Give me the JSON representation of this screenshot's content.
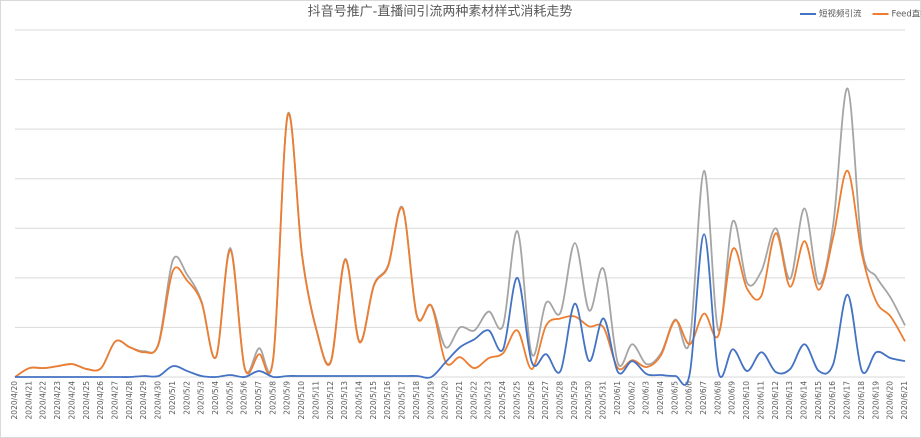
{
  "chart_data": {
    "type": "line",
    "title": "抖音号推广-直播间引流两种素材样式消耗走势",
    "categories": [
      "2020/4/20",
      "2020/4/21",
      "2020/4/22",
      "2020/4/23",
      "2020/4/24",
      "2020/4/25",
      "2020/4/26",
      "2020/4/27",
      "2020/4/28",
      "2020/4/29",
      "2020/4/30",
      "2020/5/1",
      "2020/5/2",
      "2020/5/3",
      "2020/5/4",
      "2020/5/5",
      "2020/5/6",
      "2020/5/7",
      "2020/5/8",
      "2020/5/9",
      "2020/5/10",
      "2020/5/11",
      "2020/5/12",
      "2020/5/13",
      "2020/5/14",
      "2020/5/15",
      "2020/5/16",
      "2020/5/17",
      "2020/5/18",
      "2020/5/19",
      "2020/5/20",
      "2020/5/21",
      "2020/5/22",
      "2020/5/23",
      "2020/5/24",
      "2020/5/25",
      "2020/5/26",
      "2020/5/27",
      "2020/5/28",
      "2020/5/29",
      "2020/5/30",
      "2020/5/31",
      "2020/6/1",
      "2020/6/2",
      "2020/6/3",
      "2020/6/4",
      "2020/6/5",
      "2020/6/6",
      "2020/6/7",
      "2020/6/8",
      "2020/6/9",
      "2020/6/10",
      "2020/6/11",
      "2020/6/12",
      "2020/6/13",
      "2020/6/14",
      "2020/6/15",
      "2020/6/16",
      "2020/6/17",
      "2020/6/18",
      "2020/6/19",
      "2020/6/20",
      "2020/6/21"
    ],
    "series": [
      {
        "name": "短视频引流",
        "color": "#4472c4",
        "values": [
          0,
          0,
          0,
          0,
          0,
          0,
          0,
          0,
          0,
          0.02,
          0.02,
          0.22,
          0.12,
          0.02,
          0,
          0.04,
          0,
          0.12,
          0,
          0.02,
          0.02,
          0.02,
          0.02,
          0.02,
          0.02,
          0.02,
          0.02,
          0.02,
          0.02,
          0,
          0.3,
          0.6,
          0.76,
          0.94,
          0.56,
          2.0,
          0.3,
          0.46,
          0.12,
          1.48,
          0.32,
          1.18,
          0.1,
          0.32,
          0.06,
          0.04,
          0.02,
          0.06,
          2.88,
          0.1,
          0.56,
          0.12,
          0.5,
          0.1,
          0.16,
          0.66,
          0.12,
          0.26,
          1.66,
          0.12,
          0.5,
          0.38,
          0.32
        ]
      },
      {
        "name": "Feed直投",
        "color": "#ed7d31",
        "values": [
          0,
          0.18,
          0.18,
          0.22,
          0.26,
          0.16,
          0.18,
          0.72,
          0.6,
          0.5,
          0.66,
          2.14,
          1.94,
          1.5,
          0.4,
          2.56,
          0.18,
          0.46,
          0.4,
          5.28,
          2.44,
          0.94,
          0.3,
          2.36,
          0.7,
          1.84,
          2.24,
          3.4,
          1.22,
          1.44,
          0.3,
          0.4,
          0.18,
          0.38,
          0.48,
          0.94,
          0.16,
          1.04,
          1.18,
          1.22,
          1.02,
          1.0,
          0.18,
          0.34,
          0.2,
          0.44,
          1.14,
          0.66,
          1.28,
          0.84,
          2.58,
          1.78,
          1.64,
          2.9,
          1.82,
          2.74,
          1.76,
          2.82,
          4.16,
          2.48,
          1.52,
          1.22,
          0.72
        ]
      },
      {
        "color": "#a5a5a5",
        "values": [
          0,
          0.18,
          0.18,
          0.22,
          0.26,
          0.16,
          0.18,
          0.72,
          0.6,
          0.52,
          0.68,
          2.36,
          2.06,
          1.52,
          0.4,
          2.6,
          0.18,
          0.58,
          0.4,
          5.3,
          2.46,
          0.96,
          0.32,
          2.38,
          0.72,
          1.86,
          2.26,
          3.42,
          1.24,
          1.44,
          0.6,
          1.0,
          0.94,
          1.32,
          1.04,
          2.94,
          0.46,
          1.5,
          1.3,
          2.7,
          1.34,
          2.18,
          0.28,
          0.66,
          0.26,
          0.48,
          1.16,
          0.72,
          4.16,
          0.94,
          3.14,
          1.9,
          2.14,
          3.0,
          1.98,
          3.4,
          1.88,
          3.08,
          5.82,
          2.6,
          2.02,
          1.6,
          1.04
        ]
      }
    ],
    "ylim": [
      0,
      7
    ],
    "yticks": [
      0,
      1,
      2,
      3,
      4,
      5,
      6,
      7
    ],
    "grid": true,
    "legend": "top-right"
  }
}
